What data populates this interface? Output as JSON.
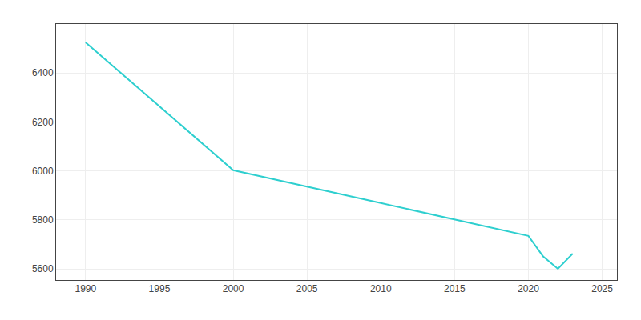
{
  "chart_data": {
    "type": "line",
    "x": [
      1990,
      2000,
      2010,
      2020,
      2021,
      2022,
      2023
    ],
    "values": [
      6525,
      6003,
      5869,
      5735,
      5651,
      5601,
      5663
    ],
    "color": "#2ecfcf",
    "xlim": [
      1988,
      2026
    ],
    "ylim": [
      5555,
      6600
    ],
    "xticks": [
      1990,
      1995,
      2000,
      2005,
      2010,
      2015,
      2020,
      2025
    ],
    "yticks": [
      5600,
      5800,
      6000,
      6200,
      6400
    ],
    "grid": true
  }
}
